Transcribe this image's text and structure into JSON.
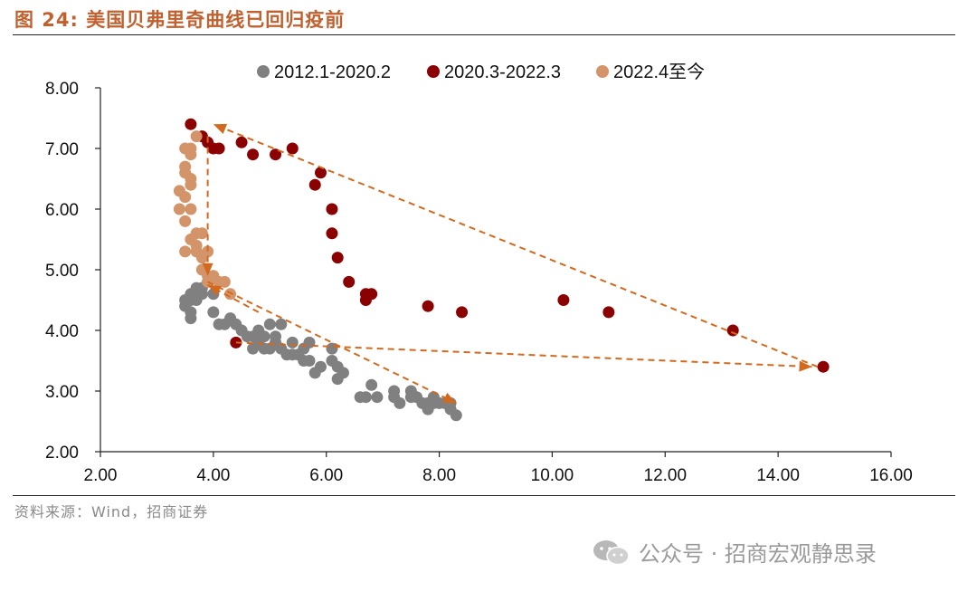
{
  "header": {
    "title": "图 24:  美国贝弗里奇曲线已回归疫前"
  },
  "footer": {
    "source": "资料来源：Wind，招商证券",
    "watermark": "公众号 · 招商宏观静思录"
  },
  "colors": {
    "series1": "#808080",
    "series2": "#8b0000",
    "series3": "#d4946a",
    "arrow": "#d2691e",
    "title": "#c0612f"
  },
  "chart_data": {
    "type": "scatter",
    "title": "",
    "xlabel": "",
    "ylabel": "",
    "xlim": [
      2.0,
      16.0
    ],
    "ylim": [
      2.0,
      8.0
    ],
    "x_ticks": [
      "2.00",
      "4.00",
      "6.00",
      "8.00",
      "10.00",
      "12.00",
      "14.00",
      "16.00"
    ],
    "y_ticks": [
      "2.00",
      "3.00",
      "4.00",
      "5.00",
      "6.00",
      "7.00",
      "8.00"
    ],
    "legend": "top",
    "series": [
      {
        "name": "2012.1-2020.2",
        "color": "#808080",
        "points": [
          [
            8.3,
            2.6
          ],
          [
            8.2,
            2.7
          ],
          [
            8.2,
            2.8
          ],
          [
            8.1,
            2.8
          ],
          [
            8.0,
            2.8
          ],
          [
            7.9,
            2.8
          ],
          [
            7.8,
            2.8
          ],
          [
            7.9,
            2.9
          ],
          [
            7.8,
            2.7
          ],
          [
            7.7,
            2.8
          ],
          [
            7.6,
            2.9
          ],
          [
            7.5,
            2.9
          ],
          [
            7.5,
            3.0
          ],
          [
            7.3,
            2.8
          ],
          [
            7.2,
            3.0
          ],
          [
            7.2,
            2.9
          ],
          [
            6.9,
            2.9
          ],
          [
            6.8,
            3.1
          ],
          [
            6.7,
            2.9
          ],
          [
            6.6,
            2.9
          ],
          [
            6.3,
            3.3
          ],
          [
            6.2,
            3.2
          ],
          [
            6.2,
            3.4
          ],
          [
            6.1,
            3.5
          ],
          [
            6.1,
            3.7
          ],
          [
            5.9,
            3.4
          ],
          [
            5.8,
            3.3
          ],
          [
            5.7,
            3.5
          ],
          [
            5.6,
            3.5
          ],
          [
            5.7,
            3.8
          ],
          [
            5.6,
            3.7
          ],
          [
            5.5,
            3.6
          ],
          [
            5.4,
            3.6
          ],
          [
            5.4,
            3.8
          ],
          [
            5.3,
            3.6
          ],
          [
            5.2,
            3.7
          ],
          [
            5.2,
            4.1
          ],
          [
            5.1,
            3.8
          ],
          [
            5.1,
            3.9
          ],
          [
            5.0,
            3.7
          ],
          [
            5.0,
            4.1
          ],
          [
            4.9,
            3.7
          ],
          [
            4.9,
            3.9
          ],
          [
            4.8,
            3.8
          ],
          [
            4.7,
            3.7
          ],
          [
            4.7,
            3.9
          ],
          [
            4.8,
            4.0
          ],
          [
            4.6,
            3.9
          ],
          [
            4.5,
            4.0
          ],
          [
            4.4,
            4.1
          ],
          [
            4.3,
            4.2
          ],
          [
            4.2,
            4.1
          ],
          [
            4.1,
            4.1
          ],
          [
            4.0,
            4.3
          ],
          [
            4.0,
            4.6
          ],
          [
            3.9,
            4.8
          ],
          [
            3.8,
            4.7
          ],
          [
            3.8,
            4.6
          ],
          [
            3.7,
            4.5
          ],
          [
            3.7,
            4.7
          ],
          [
            3.6,
            4.5
          ],
          [
            3.6,
            4.6
          ],
          [
            3.5,
            4.4
          ],
          [
            3.5,
            4.5
          ],
          [
            3.6,
            4.3
          ],
          [
            3.6,
            4.2
          ]
        ]
      },
      {
        "name": "2020.3-2022.3",
        "color": "#8b0000",
        "points": [
          [
            4.4,
            3.8
          ],
          [
            14.8,
            3.4
          ],
          [
            13.2,
            4.0
          ],
          [
            11.0,
            4.3
          ],
          [
            10.2,
            4.5
          ],
          [
            8.4,
            4.3
          ],
          [
            7.8,
            4.4
          ],
          [
            6.8,
            4.6
          ],
          [
            6.7,
            4.5
          ],
          [
            6.7,
            4.6
          ],
          [
            6.4,
            4.8
          ],
          [
            6.2,
            5.2
          ],
          [
            6.1,
            5.6
          ],
          [
            6.1,
            6.0
          ],
          [
            5.8,
            6.4
          ],
          [
            5.9,
            6.6
          ],
          [
            5.4,
            7.0
          ],
          [
            5.1,
            6.9
          ],
          [
            4.7,
            6.9
          ],
          [
            4.5,
            7.1
          ],
          [
            4.1,
            7.0
          ],
          [
            4.0,
            7.0
          ],
          [
            3.9,
            7.1
          ],
          [
            3.8,
            7.2
          ],
          [
            3.6,
            7.4
          ]
        ]
      },
      {
        "name": "2022.4至今",
        "color": "#d4946a",
        "points": [
          [
            3.7,
            7.2
          ],
          [
            3.6,
            7.0
          ],
          [
            3.5,
            7.0
          ],
          [
            3.6,
            6.9
          ],
          [
            3.5,
            6.7
          ],
          [
            3.5,
            6.6
          ],
          [
            3.6,
            6.5
          ],
          [
            3.6,
            6.4
          ],
          [
            3.4,
            6.3
          ],
          [
            3.5,
            6.2
          ],
          [
            3.4,
            6.0
          ],
          [
            3.6,
            6.0
          ],
          [
            3.5,
            5.8
          ],
          [
            3.7,
            5.6
          ],
          [
            3.8,
            5.6
          ],
          [
            3.6,
            5.5
          ],
          [
            3.7,
            5.4
          ],
          [
            3.7,
            5.3
          ],
          [
            3.9,
            5.3
          ],
          [
            3.5,
            5.3
          ],
          [
            3.8,
            5.2
          ],
          [
            3.8,
            5.0
          ],
          [
            3.9,
            4.9
          ],
          [
            4.0,
            4.9
          ],
          [
            4.1,
            4.8
          ],
          [
            4.2,
            4.8
          ],
          [
            3.9,
            4.8
          ],
          [
            4.3,
            4.6
          ]
        ]
      }
    ],
    "annotations": {
      "arrows": [
        {
          "from": [
            3.9,
            7.2
          ],
          "to": [
            3.9,
            4.9
          ]
        },
        {
          "from": [
            3.9,
            4.8
          ],
          "to": [
            8.3,
            2.8
          ]
        },
        {
          "from": [
            14.7,
            3.4
          ],
          "to": [
            4.0,
            7.4
          ]
        },
        {
          "from": [
            4.4,
            3.8
          ],
          "to": [
            14.6,
            3.4
          ]
        },
        {
          "from": [
            4.8,
            4.3
          ],
          "to": [
            3.9,
            4.75
          ]
        }
      ]
    }
  }
}
